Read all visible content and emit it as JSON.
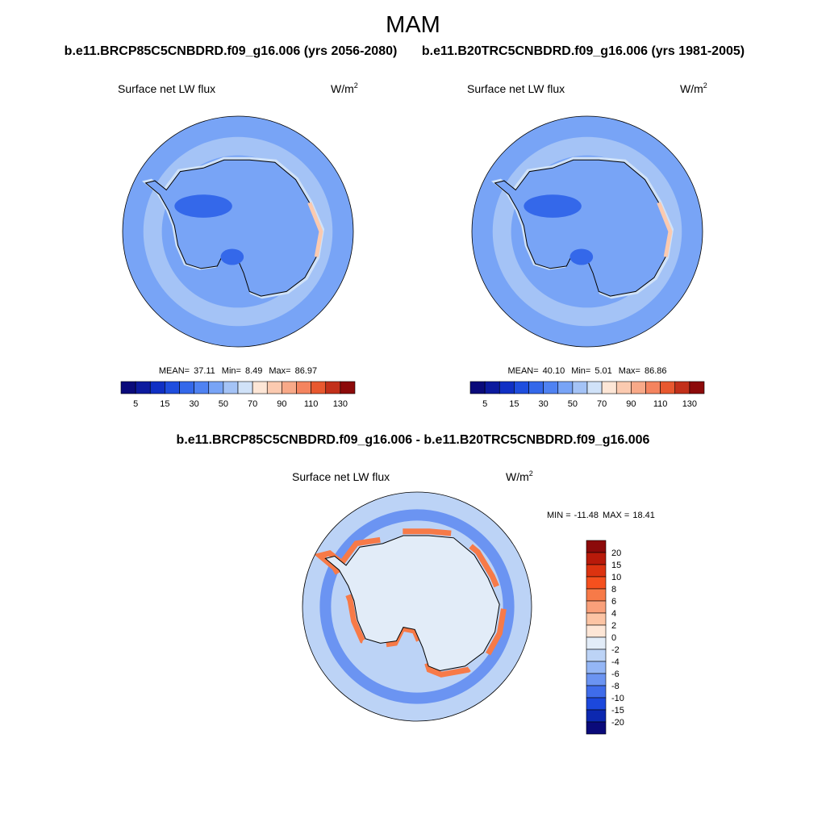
{
  "title": "MAM",
  "panels": [
    {
      "title": "b.e11.BRCP85C5CNBDRD.f09_g16.006 (yrs 2056-2080)",
      "variable": "Surface net LW flux",
      "units": "W/m",
      "units_sup": "2",
      "stats": [
        {
          "label": "MEAN=",
          "value": "37.11"
        },
        {
          "label": "Min=",
          "value": "8.49"
        },
        {
          "label": "Max=",
          "value": "86.97"
        }
      ],
      "colorbar": {
        "colors": [
          "#0a0a7a",
          "#0c1a9e",
          "#1030c4",
          "#1f4ede",
          "#3468ea",
          "#4f82f2",
          "#78a4f6",
          "#a4c3f6",
          "#d0e2f8",
          "#fde6d6",
          "#fbcab0",
          "#f8a988",
          "#f4845f",
          "#e8582f",
          "#c2301a",
          "#8c0a0a"
        ],
        "labels": [
          5,
          15,
          30,
          50,
          70,
          90,
          110,
          130
        ]
      }
    },
    {
      "title": "b.e11.B20TRC5CNBDRD.f09_g16.006 (yrs 1981-2005)",
      "variable": "Surface net LW flux",
      "units": "W/m",
      "units_sup": "2",
      "stats": [
        {
          "label": "MEAN=",
          "value": "40.10"
        },
        {
          "label": "Min=",
          "value": "5.01"
        },
        {
          "label": "Max=",
          "value": "86.86"
        }
      ],
      "colorbar": {
        "colors": [
          "#0a0a7a",
          "#0c1a9e",
          "#1030c4",
          "#1f4ede",
          "#3468ea",
          "#4f82f2",
          "#78a4f6",
          "#a4c3f6",
          "#d0e2f8",
          "#fde6d6",
          "#fbcab0",
          "#f8a988",
          "#f4845f",
          "#e8582f",
          "#c2301a",
          "#8c0a0a"
        ],
        "labels": [
          5,
          15,
          30,
          50,
          70,
          90,
          110,
          130
        ]
      }
    }
  ],
  "difference": {
    "title": "b.e11.BRCP85C5CNBDRD.f09_g16.006 - b.e11.B20TRC5CNBDRD.f09_g16.006",
    "variable": "Surface net LW flux",
    "units": "W/m",
    "units_sup": "2",
    "stats": [
      {
        "label": "MIN =",
        "value": "-11.48"
      },
      {
        "label": "MAX =",
        "value": "18.41"
      }
    ],
    "colorbar": {
      "colors": [
        "#8c0a0a",
        "#b81a0a",
        "#dc3310",
        "#f5501e",
        "#f77a48",
        "#f9a07a",
        "#fcc4a4",
        "#fde6d6",
        "#e2ecf8",
        "#bcd3f6",
        "#94b6f6",
        "#6b94f2",
        "#3f6cea",
        "#1c48dc",
        "#0c28b0",
        "#0a0a7a"
      ],
      "labels": [
        20,
        15,
        10,
        8,
        6,
        4,
        2,
        0,
        -2,
        -4,
        -6,
        -8,
        -10,
        -15,
        -20
      ]
    }
  }
}
